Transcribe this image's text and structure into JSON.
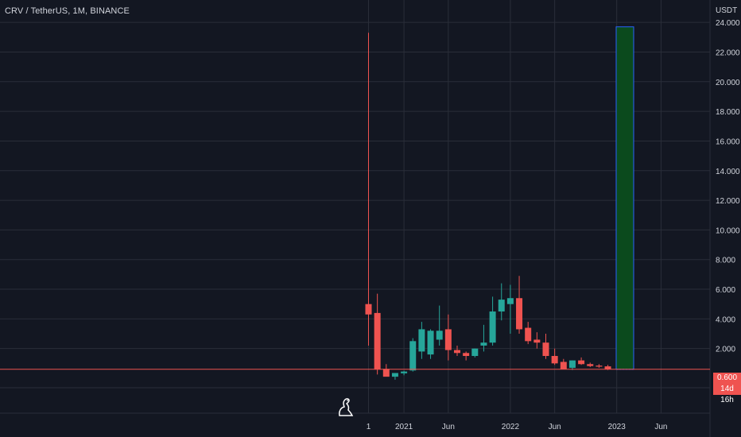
{
  "header": {
    "title": "CRV / TetherUS, 1M, BINANCE"
  },
  "last_price": {
    "value": "0.600",
    "countdown": "14d 16h"
  },
  "colors": {
    "background": "#131722",
    "grid": "#2a2e39",
    "up": "#26a69a",
    "down": "#ef5350",
    "price_line": "#ef5350",
    "projection_fill": "#0b4a1d",
    "projection_border": "#2962ff"
  },
  "chart_data": {
    "type": "candlestick",
    "title": "CRV / TetherUS, 1M, BINANCE",
    "yunit": "USDT",
    "ylim": [
      0,
      24.5
    ],
    "grid": true,
    "y_ticks": [
      "2.000",
      "4.000",
      "6.000",
      "8.000",
      "10.000",
      "12.000",
      "14.000",
      "16.000",
      "18.000",
      "20.000",
      "22.000",
      "24.000"
    ],
    "y_tick_values": [
      2,
      4,
      6,
      8,
      10,
      12,
      14,
      16,
      18,
      20,
      22,
      24
    ],
    "x_ticks": [
      {
        "label": "1",
        "month": 0
      },
      {
        "label": "2021",
        "month": 4
      },
      {
        "label": "Jun",
        "month": 9
      },
      {
        "label": "2022",
        "month": 16
      },
      {
        "label": "Jun",
        "month": 21
      },
      {
        "label": "2023",
        "month": 28
      },
      {
        "label": "Jun",
        "month": 33
      }
    ],
    "candles": [
      {
        "open": 5.0,
        "high": 23.3,
        "low": 2.2,
        "close": 4.3
      },
      {
        "open": 4.4,
        "high": 5.7,
        "low": 0.25,
        "close": 0.58
      },
      {
        "open": 0.63,
        "high": 0.95,
        "low": 0.28,
        "close": 0.1
      },
      {
        "open": 0.1,
        "high": 0.2,
        "low": -0.1,
        "close": 0.35
      },
      {
        "open": 0.33,
        "high": 0.5,
        "low": 0.2,
        "close": 0.45
      },
      {
        "open": 0.52,
        "high": 2.7,
        "low": 0.45,
        "close": 2.5
      },
      {
        "open": 1.8,
        "high": 3.8,
        "low": 1.3,
        "close": 3.3
      },
      {
        "open": 1.6,
        "high": 3.3,
        "low": 1.3,
        "close": 3.2
      },
      {
        "open": 2.6,
        "high": 4.9,
        "low": 2.2,
        "close": 3.2
      },
      {
        "open": 3.3,
        "high": 4.3,
        "low": 1.2,
        "close": 1.9
      },
      {
        "open": 1.9,
        "high": 2.2,
        "low": 1.5,
        "close": 1.7
      },
      {
        "open": 1.7,
        "high": 1.8,
        "low": 1.2,
        "close": 1.5
      },
      {
        "open": 1.5,
        "high": 2.0,
        "low": 1.4,
        "close": 2.0
      },
      {
        "open": 2.2,
        "high": 3.6,
        "low": 1.8,
        "close": 2.4
      },
      {
        "open": 2.4,
        "high": 5.5,
        "low": 2.2,
        "close": 4.5
      },
      {
        "open": 4.5,
        "high": 6.4,
        "low": 3.9,
        "close": 5.3
      },
      {
        "open": 5.0,
        "high": 6.3,
        "low": 3.0,
        "close": 5.4
      },
      {
        "open": 5.4,
        "high": 6.9,
        "low": 3.0,
        "close": 3.3
      },
      {
        "open": 3.4,
        "high": 3.8,
        "low": 2.3,
        "close": 2.5
      },
      {
        "open": 2.6,
        "high": 3.1,
        "low": 2.0,
        "close": 2.4
      },
      {
        "open": 2.4,
        "high": 3.0,
        "low": 1.3,
        "close": 1.5
      },
      {
        "open": 1.5,
        "high": 2.0,
        "low": 0.9,
        "close": 1.0
      },
      {
        "open": 1.1,
        "high": 1.3,
        "low": 0.6,
        "close": 0.6
      },
      {
        "open": 0.7,
        "high": 1.2,
        "low": 0.55,
        "close": 1.2
      },
      {
        "open": 1.2,
        "high": 1.4,
        "low": 0.9,
        "close": 0.95
      },
      {
        "open": 0.95,
        "high": 1.05,
        "low": 0.75,
        "close": 0.82
      },
      {
        "open": 0.85,
        "high": 0.95,
        "low": 0.7,
        "close": 0.78
      },
      {
        "open": 0.8,
        "high": 0.9,
        "low": 0.55,
        "close": 0.6
      }
    ],
    "projection": {
      "from": 0.6,
      "to": 23.7
    }
  }
}
